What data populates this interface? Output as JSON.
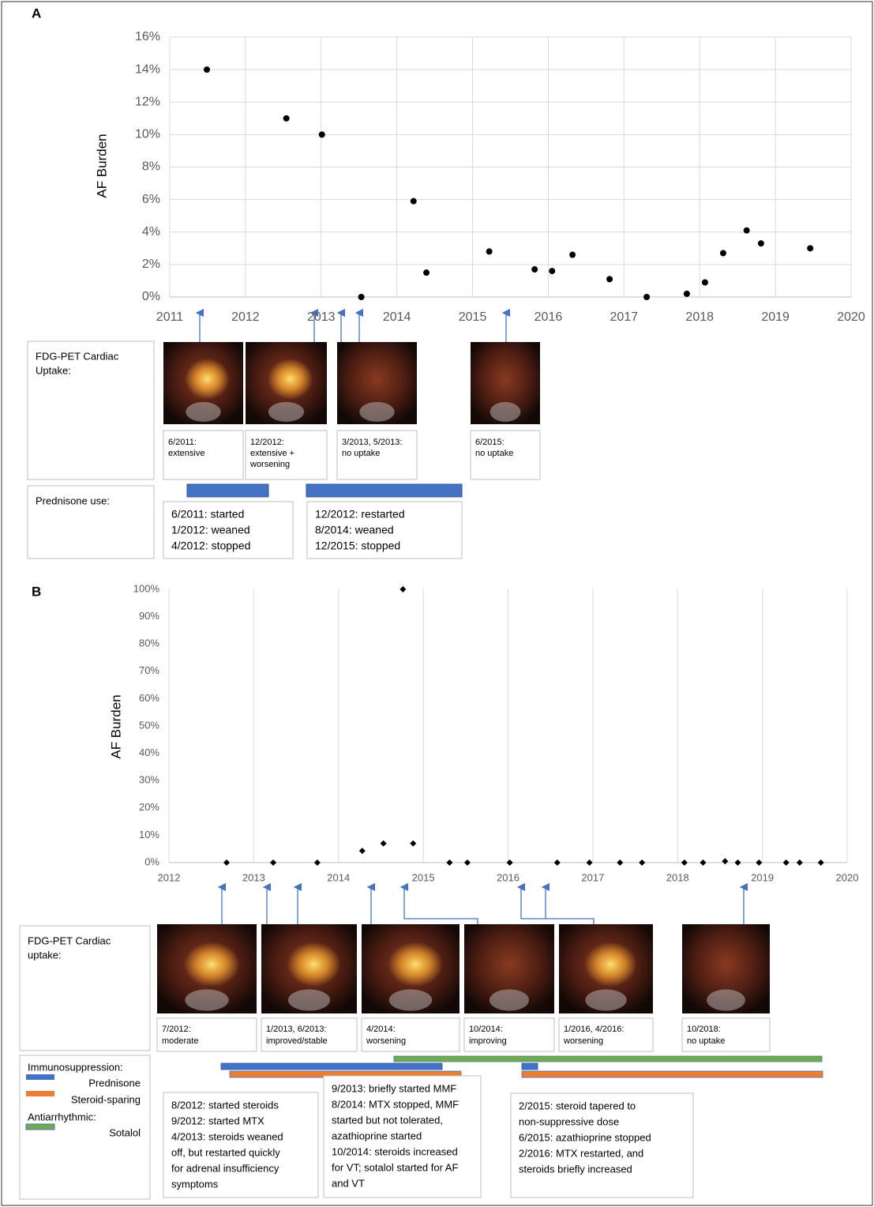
{
  "chart_data": [
    {
      "type": "scatter",
      "y_label": "AF Burden",
      "color": "#000000",
      "marker": "circle",
      "grid": "both",
      "x": [
        2011.49,
        2012.54,
        2013.01,
        2013.53,
        2014.22,
        2014.39,
        2015.22,
        2015.82,
        2016.05,
        2016.32,
        2016.81,
        2017.3,
        2017.83,
        2018.07,
        2018.31,
        2018.62,
        2018.81,
        2019.46
      ],
      "values": [
        14,
        11,
        10,
        0,
        5.9,
        1.5,
        2.8,
        1.7,
        1.6,
        2.6,
        1.1,
        0,
        0.2,
        0.9,
        2.7,
        4.1,
        3.3,
        3.0
      ],
      "xlim": [
        2011,
        2020
      ],
      "xticks": [
        2011,
        2012,
        2013,
        2014,
        2015,
        2016,
        2017,
        2018,
        2019,
        2020
      ],
      "ylim": [
        0,
        16
      ],
      "yticks": [
        {
          "value": 0,
          "label": "0%"
        },
        {
          "value": 2,
          "label": "2%"
        },
        {
          "value": 4,
          "label": "4%"
        },
        {
          "value": 6,
          "label": "6%"
        },
        {
          "value": 8,
          "label": "8%"
        },
        {
          "value": 10,
          "label": "10%"
        },
        {
          "value": 12,
          "label": "12%"
        },
        {
          "value": 14,
          "label": "14%"
        },
        {
          "value": 16,
          "label": "16%"
        }
      ]
    },
    {
      "type": "scatter",
      "y_label": "AF Burden",
      "color": "#000000",
      "marker": "diamond",
      "grid": "x",
      "x": [
        2012.68,
        2013.23,
        2013.75,
        2014.28,
        2014.53,
        2014.76,
        2014.88,
        2015.31,
        2015.52,
        2016.02,
        2016.58,
        2016.96,
        2017.32,
        2017.58,
        2018.08,
        2018.3,
        2018.56,
        2018.71,
        2018.96,
        2019.28,
        2019.44,
        2019.69
      ],
      "values": [
        0,
        0,
        0,
        4.3,
        7,
        100,
        7,
        0,
        0,
        0,
        0,
        0,
        0,
        0,
        0,
        0,
        0.5,
        0,
        0,
        0,
        0,
        0
      ],
      "xlim": [
        2012,
        2020
      ],
      "xticks": [
        2012,
        2013,
        2014,
        2015,
        2016,
        2017,
        2018,
        2019,
        2020
      ],
      "ylim": [
        0,
        100
      ],
      "yticks": [
        {
          "value": 0,
          "label": "0%"
        },
        {
          "value": 10,
          "label": "10%"
        },
        {
          "value": 20,
          "label": "20%"
        },
        {
          "value": 30,
          "label": "30%"
        },
        {
          "value": 40,
          "label": "40%"
        },
        {
          "value": 50,
          "label": "50%"
        },
        {
          "value": 60,
          "label": "60%"
        },
        {
          "value": 70,
          "label": "70%"
        },
        {
          "value": 80,
          "label": "80%"
        },
        {
          "value": 90,
          "label": "90%"
        },
        {
          "value": 100,
          "label": "100%"
        }
      ]
    }
  ],
  "panel_a": {
    "label": "A",
    "pet_label": [
      "FDG-PET Cardiac",
      "Uptake:"
    ],
    "pet_captions": [
      [
        "6/2011:",
        "extensive"
      ],
      [
        "12/2012:",
        "extensive +",
        "worsening"
      ],
      [
        "3/2013, 5/2013:",
        "no uptake"
      ],
      [
        "6/2015:",
        "no uptake"
      ]
    ],
    "prednisone_label": [
      "Prednisone use:"
    ],
    "prednisone_notes": [
      [
        "6/2011: started",
        "1/2012: weaned",
        "4/2012: stopped"
      ],
      [
        "12/2012: restarted",
        "8/2014:   weaned",
        "12/2015: stopped"
      ]
    ]
  },
  "panel_b": {
    "label": "B",
    "pet_label": [
      "FDG-PET Cardiac",
      "uptake:"
    ],
    "pet_captions": [
      [
        "7/2012:",
        "moderate"
      ],
      [
        "1/2013, 6/2013:",
        "improved/stable"
      ],
      [
        "4/2014:",
        "worsening"
      ],
      [
        "10/2014:",
        "improving"
      ],
      [
        "1/2016, 4/2016:",
        "worsening"
      ],
      [
        "10/2018:",
        "no uptake"
      ]
    ],
    "legend": {
      "immunosuppression": "Immunosuppression:",
      "prednisone": "Prednisone",
      "steroid_sparing": "Steroid-sparing",
      "antiarrhythmic": "Antiarrhythmic:",
      "sotalol": "Sotalol"
    },
    "notes": [
      [
        "8/2012: started steroids",
        "9/2012: started MTX",
        "4/2013: steroids weaned",
        "off, but restarted quickly",
        "for adrenal insufficiency",
        "symptoms"
      ],
      [
        "9/2013: briefly started MMF",
        "8/2014: MTX stopped, MMF",
        "started but not tolerated,",
        "azathioprine started",
        "10/2014: steroids increased",
        "for VT; sotalol started for AF",
        "and VT"
      ],
      [
        "2/2015: steroid tapered to",
        "non-suppressive dose",
        "6/2015: azathioprine stopped",
        "2/2016: MTX restarted, and",
        "steroids briefly increased"
      ]
    ]
  }
}
